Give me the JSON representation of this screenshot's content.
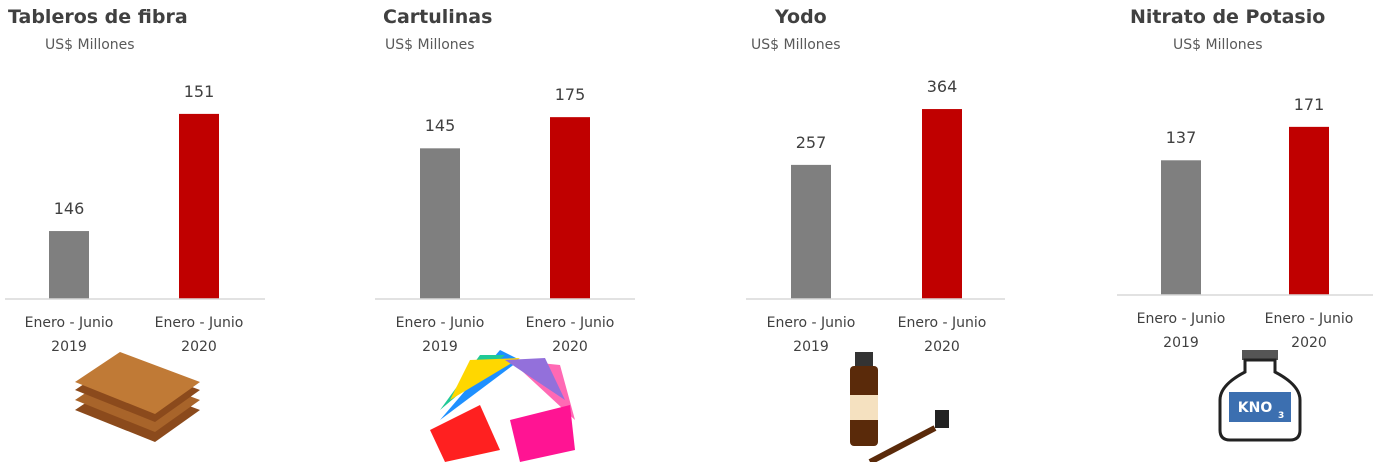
{
  "chart_data": [
    {
      "type": "bar",
      "title": "Tableros de fibra",
      "subtitle": "US$ Millones",
      "categories": [
        "Enero - Junio 2019",
        "Enero - Junio 2020"
      ],
      "values": [
        146,
        151
      ],
      "colors": [
        "#7f7f7f",
        "#c00000"
      ],
      "ylim": [
        143.1,
        153.3
      ]
    },
    {
      "type": "bar",
      "title": "Cartulinas",
      "subtitle": "US$ Millones",
      "categories": [
        "Enero - Junio 2019",
        "Enero - Junio 2020"
      ],
      "values": [
        145,
        175
      ],
      "colors": [
        "#7f7f7f",
        "#c00000"
      ],
      "ylim": [
        0,
        230
      ]
    },
    {
      "type": "bar",
      "title": "Yodo",
      "subtitle": "US$ Millones",
      "categories": [
        "Enero - Junio 2019",
        "Enero - Junio 2020"
      ],
      "values": [
        257,
        364
      ],
      "colors": [
        "#7f7f7f",
        "#c00000"
      ],
      "ylim": [
        0,
        458
      ]
    },
    {
      "type": "bar",
      "title": "Nitrato de Potasio",
      "subtitle": "US$ Millones",
      "categories": [
        "Enero - Junio 2019",
        "Enero - Junio 2020"
      ],
      "values": [
        137,
        171
      ],
      "colors": [
        "#7f7f7f",
        "#c00000"
      ],
      "ylim": [
        0,
        239
      ]
    }
  ]
}
